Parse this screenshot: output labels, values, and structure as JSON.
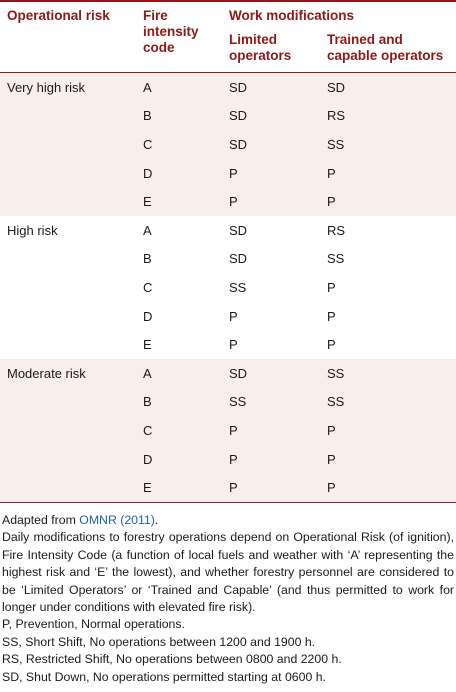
{
  "table": {
    "headers": {
      "operational_risk": "Operational risk",
      "fire_intensity_code": "Fire intensity code",
      "work_modifications": "Work modifications",
      "limited_operators": "Limited operators",
      "trained_operators": "Trained and capable operators"
    },
    "groups": [
      {
        "risk": "Very high risk",
        "shaded": true,
        "rows": [
          {
            "code": "A",
            "limited": "SD",
            "trained": "SD"
          },
          {
            "code": "B",
            "limited": "SD",
            "trained": "RS"
          },
          {
            "code": "C",
            "limited": "SD",
            "trained": "SS"
          },
          {
            "code": "D",
            "limited": "P",
            "trained": "P"
          },
          {
            "code": "E",
            "limited": "P",
            "trained": "P"
          }
        ]
      },
      {
        "risk": "High risk",
        "shaded": false,
        "rows": [
          {
            "code": "A",
            "limited": "SD",
            "trained": "RS"
          },
          {
            "code": "B",
            "limited": "SD",
            "trained": "SS"
          },
          {
            "code": "C",
            "limited": "SS",
            "trained": "P"
          },
          {
            "code": "D",
            "limited": "P",
            "trained": "P"
          },
          {
            "code": "E",
            "limited": "P",
            "trained": "P"
          }
        ]
      },
      {
        "risk": "Moderate risk",
        "shaded": true,
        "rows": [
          {
            "code": "A",
            "limited": "SD",
            "trained": "SS"
          },
          {
            "code": "B",
            "limited": "SS",
            "trained": "SS"
          },
          {
            "code": "C",
            "limited": "P",
            "trained": "P"
          },
          {
            "code": "D",
            "limited": "P",
            "trained": "P"
          },
          {
            "code": "E",
            "limited": "P",
            "trained": "P"
          }
        ]
      }
    ]
  },
  "notes": {
    "source_prefix": "Adapted from ",
    "source_link": "OMNR (2011)",
    "source_suffix": ".",
    "description": "Daily modifications to forestry operations depend on Operational Risk (of ignition), Fire Intensity Code (a function of local fuels and weather with ‘A’ representing the highest risk and ‘E’ the lowest), and whether forestry personnel are considered to be ‘Limited Operators’ or ‘Trained and Capable’ (and thus permitted to work for longer under conditions with elevated fire risk).",
    "abbreviations": [
      "P, Prevention, Normal operations.",
      "SS, Short Shift, No operations between 1200 and 1900 h.",
      "RS, Restricted Shift, No operations between 0800 and 2200 h.",
      "SD, Shut Down, No operations permitted starting at 0600 h."
    ]
  }
}
